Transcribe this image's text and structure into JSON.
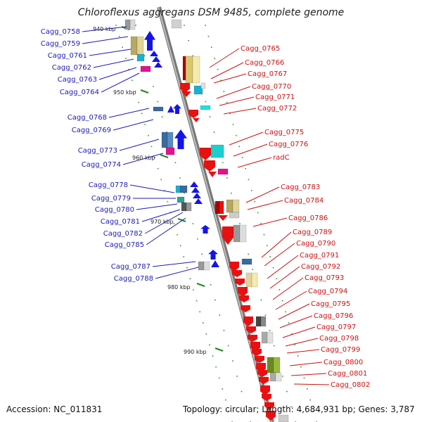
{
  "title": "Chloroflexus aggregans DSM 9485, complete genome",
  "footer": {
    "accession": "Accession: NC_011831",
    "summary": "Topology: circular; Length: 4,684,931 bp; Genes: 3,787"
  },
  "colors": {
    "backbone": "#8c8c8c",
    "reverse_label": "#1c1cb4",
    "forward_label": "#cc1111",
    "tick": "#1a8a1a"
  },
  "kbp_marks": [
    "940 kbp",
    "950 kbp",
    "960 kbp",
    "970 kbp",
    "980 kbp",
    "990 kbp"
  ],
  "left_labels": [
    "Cagg_0758",
    "Cagg_0759",
    "Cagg_0761",
    "Cagg_0762",
    "Cagg_0763",
    "Cagg_0764",
    "Cagg_0768",
    "Cagg_0769",
    "Cagg_0773",
    "Cagg_0774",
    "Cagg_0778",
    "Cagg_0779",
    "Cagg_0780",
    "Cagg_0781",
    "Cagg_0782",
    "Cagg_0785",
    "Cagg_0787",
    "Cagg_0788"
  ],
  "right_labels": [
    "Cagg_0765",
    "Cagg_0766",
    "Cagg_0767",
    "Cagg_0770",
    "Cagg_0771",
    "Cagg_0772",
    "Cagg_0775",
    "Cagg_0776",
    "radC",
    "Cagg_0783",
    "Cagg_0784",
    "Cagg_0786",
    "Cagg_0789",
    "Cagg_0790",
    "Cagg_0791",
    "Cagg_0792",
    "Cagg_0793",
    "Cagg_0794",
    "Cagg_0795",
    "Cagg_0796",
    "Cagg_0797",
    "Cagg_0798",
    "Cagg_0799",
    "Cagg_0800",
    "Cagg_0801",
    "Cagg_0802"
  ]
}
